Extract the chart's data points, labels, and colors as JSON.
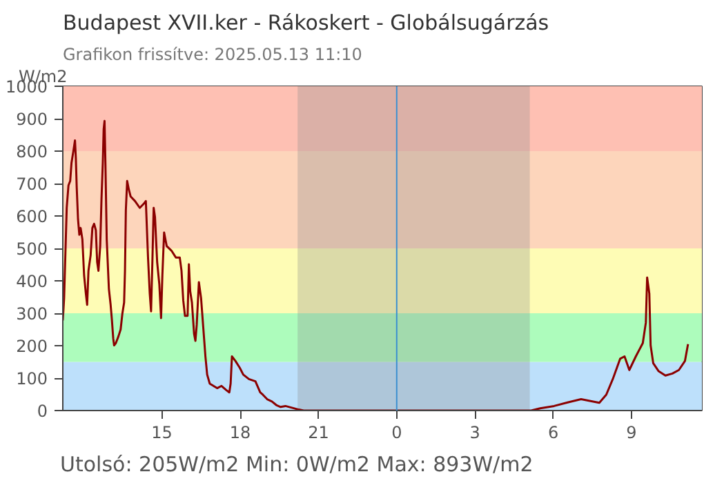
{
  "chart_data": {
    "type": "line",
    "title": "Budapest XVII.ker - Rákoskert - Globálsugárzás",
    "subtitle": "Grafikon frissítve: 2025.05.13 11:10",
    "ylabel": "W/m2",
    "annotations": [
      "Utolsó: 205W/m2  Min: 0W/m2  Max: 893W/m2"
    ],
    "series": [
      {
        "color": "#8b0000",
        "x": [
          "2025-05-12T11:12",
          "2025-05-12T11:15",
          "2025-05-12T11:18",
          "2025-05-12T11:21",
          "2025-05-12T11:25",
          "2025-05-12T11:29",
          "2025-05-12T11:32",
          "2025-05-12T11:37",
          "2025-05-12T11:40",
          "2025-05-12T11:42",
          "2025-05-12T11:44",
          "2025-05-12T11:47",
          "2025-05-12T11:50",
          "2025-05-12T11:53",
          "2025-05-12T11:57",
          "2025-05-12T12:01",
          "2025-05-12T12:05",
          "2025-05-12T12:08",
          "2025-05-12T12:11",
          "2025-05-12T12:16",
          "2025-05-12T12:20",
          "2025-05-12T12:24",
          "2025-05-12T12:28",
          "2025-05-12T12:31",
          "2025-05-12T12:34",
          "2025-05-12T12:38",
          "2025-05-12T12:41",
          "2025-05-12T12:44",
          "2025-05-12T12:46",
          "2025-05-12T12:48",
          "2025-05-12T12:50",
          "2025-05-12T12:53",
          "2025-05-12T12:58",
          "2025-05-12T13:02",
          "2025-05-12T13:05",
          "2025-05-12T13:08",
          "2025-05-12T13:10",
          "2025-05-12T13:14",
          "2025-05-12T13:20",
          "2025-05-12T13:25",
          "2025-05-12T13:29",
          "2025-05-12T13:33",
          "2025-05-12T13:35",
          "2025-05-12T13:37",
          "2025-05-12T13:40",
          "2025-05-12T13:44",
          "2025-05-12T13:48",
          "2025-05-12T13:58",
          "2025-05-12T14:09",
          "2025-05-12T14:19",
          "2025-05-12T14:23",
          "2025-05-12T14:28",
          "2025-05-12T14:32",
          "2025-05-12T14:35",
          "2025-05-12T14:38",
          "2025-05-12T14:41",
          "2025-05-12T14:44",
          "2025-05-12T14:49",
          "2025-05-12T14:54",
          "2025-05-12T14:58",
          "2025-05-12T15:01",
          "2025-05-12T15:05",
          "2025-05-12T15:11",
          "2025-05-12T15:22",
          "2025-05-12T15:32",
          "2025-05-12T15:41",
          "2025-05-12T15:45",
          "2025-05-12T15:49",
          "2025-05-12T15:53",
          "2025-05-12T15:59",
          "2025-05-12T16:02",
          "2025-05-12T16:05",
          "2025-05-12T16:09",
          "2025-05-12T16:14",
          "2025-05-12T16:17",
          "2025-05-12T16:20",
          "2025-05-12T16:25",
          "2025-05-12T16:30",
          "2025-05-12T16:35",
          "2025-05-12T16:40",
          "2025-05-12T16:44",
          "2025-05-12T16:50",
          "2025-05-12T17:07",
          "2025-05-12T17:17",
          "2025-05-12T17:28",
          "2025-05-12T17:35",
          "2025-05-12T17:38",
          "2025-05-12T17:41",
          "2025-05-12T17:49",
          "2025-05-12T17:59",
          "2025-05-12T18:07",
          "2025-05-12T18:20",
          "2025-05-12T18:35",
          "2025-05-12T18:46",
          "2025-05-12T18:52",
          "2025-05-12T19:02",
          "2025-05-12T19:13",
          "2025-05-12T19:23",
          "2025-05-12T19:33",
          "2025-05-12T19:44",
          "2025-05-12T20:15",
          "2025-05-12T20:26",
          "2025-05-13T05:09",
          "2025-05-13T05:30",
          "2025-05-13T06:02",
          "2025-05-13T06:33",
          "2025-05-13T07:04",
          "2025-05-13T07:46",
          "2025-05-13T08:02",
          "2025-05-13T08:17",
          "2025-05-13T08:34",
          "2025-05-13T08:44",
          "2025-05-13T08:55",
          "2025-05-13T09:10",
          "2025-05-13T09:26",
          "2025-05-13T09:33",
          "2025-05-13T09:36",
          "2025-05-13T09:41",
          "2025-05-13T09:44",
          "2025-05-13T09:50",
          "2025-05-13T10:02",
          "2025-05-13T10:18",
          "2025-05-13T10:34",
          "2025-05-13T10:49",
          "2025-05-13T11:03",
          "2025-05-13T11:10"
        ],
        "values": [
          278,
          347,
          486,
          625,
          694,
          708,
          764,
          806,
          833,
          778,
          688,
          590,
          542,
          563,
          528,
          417,
          361,
          326,
          431,
          479,
          563,
          576,
          556,
          458,
          431,
          507,
          653,
          764,
          868,
          893,
          764,
          528,
          375,
          326,
          278,
          222,
          201,
          208,
          229,
          250,
          299,
          333,
          431,
          618,
          708,
          681,
          660,
          646,
          625,
          639,
          646,
          472,
          361,
          306,
          458,
          625,
          597,
          458,
          389,
          285,
          417,
          549,
          507,
          493,
          472,
          472,
          431,
          340,
          292,
          292,
          451,
          368,
          333,
          236,
          215,
          264,
          396,
          347,
          257,
          167,
          111,
          83,
          69,
          76,
          63,
          56,
          83,
          167,
          153,
          132,
          111,
          97,
          90,
          56,
          49,
          35,
          28,
          17,
          11,
          14,
          3,
          0,
          0,
          7,
          14,
          25,
          35,
          24,
          49,
          97,
          160,
          167,
          125,
          167,
          208,
          271,
          410,
          361,
          201,
          146,
          122,
          108,
          114,
          125,
          153,
          205
        ]
      }
    ],
    "xlim": [
      "2025-05-12T11:12",
      "2025-05-13T11:42"
    ],
    "ylim": [
      0,
      1000
    ],
    "xticks": [
      {
        "value": "2025-05-12T15:00",
        "label": "15"
      },
      {
        "value": "2025-05-12T18:00",
        "label": "18"
      },
      {
        "value": "2025-05-12T21:00",
        "label": "21"
      },
      {
        "value": "2025-05-13T00:00",
        "label": "0"
      },
      {
        "value": "2025-05-13T03:00",
        "label": "3"
      },
      {
        "value": "2025-05-13T06:00",
        "label": "6"
      },
      {
        "value": "2025-05-13T09:00",
        "label": "9"
      }
    ],
    "yticks": [
      0,
      100,
      200,
      300,
      400,
      500,
      600,
      700,
      800,
      900,
      1000
    ],
    "bands": [
      {
        "axis": "y",
        "from": 0,
        "to": 150,
        "color": "#bde0fb"
      },
      {
        "axis": "y",
        "from": 150,
        "to": 300,
        "color": "#adfcbc"
      },
      {
        "axis": "y",
        "from": 300,
        "to": 500,
        "color": "#fefcb5"
      },
      {
        "axis": "y",
        "from": 500,
        "to": 800,
        "color": "#fdd5bb"
      },
      {
        "axis": "y",
        "from": 800,
        "to": 1000,
        "color": "#fec0b3"
      },
      {
        "axis": "x",
        "from": "2025-05-12T20:12",
        "to": "2025-05-13T05:06",
        "color": "#8a8a8a"
      }
    ],
    "ref_lines": [
      {
        "axis": "x",
        "value": "2025-05-13T00:00",
        "color": "#3b8fd0"
      }
    ],
    "grid": false
  }
}
